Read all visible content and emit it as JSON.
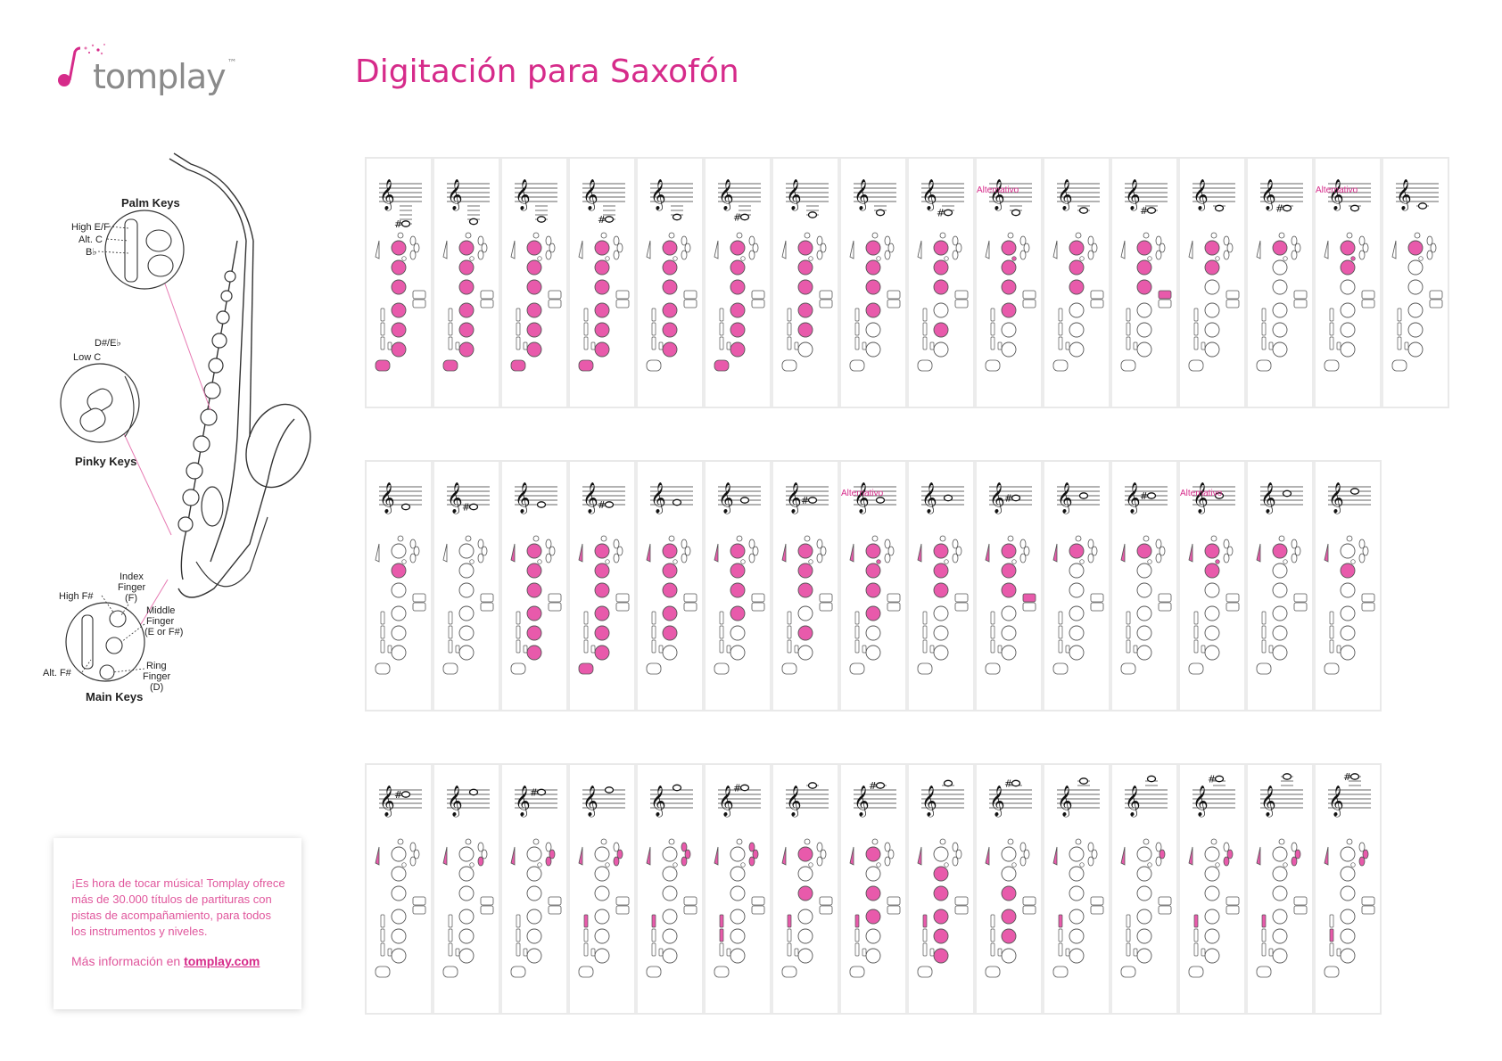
{
  "brand": {
    "name": "tomplay",
    "tm": "™",
    "accent": "#d62b8a"
  },
  "title": "Digitación para Saxofón",
  "diagram_labels": {
    "palm_keys": "Palm Keys",
    "high_ef": "High E/F",
    "alt_c": "Alt. C",
    "bb": "B♭",
    "d_sharp": "D#/E♭",
    "low_c": "Low C",
    "pinky_keys": "Pinky Keys",
    "high_fs": "High F#",
    "index_finger_1": "Index",
    "index_finger_2": "Finger",
    "index_finger_3": "(F)",
    "middle_finger_1": "Middle",
    "middle_finger_2": "Finger",
    "middle_finger_3": "(E or F#)",
    "ring_finger_1": "Ring",
    "ring_finger_2": "Finger",
    "ring_finger_3": "(D)",
    "alt_fs": "Alt. F#",
    "main_keys": "Main Keys"
  },
  "alternative_label": "Alternativo",
  "rows": [
    [
      {
        "pos": -6,
        "acc": "#",
        "pal": [
          0,
          0,
          0
        ],
        "main": [
          1,
          1,
          1,
          1,
          1,
          1
        ],
        "side": 0,
        "bis": 0,
        "lower": [
          0,
          0,
          0
        ],
        "rbot": 1,
        "lbot": 1
      },
      {
        "pos": -5,
        "acc": "",
        "pal": [
          0,
          0,
          0
        ],
        "main": [
          1,
          1,
          1,
          1,
          1,
          1
        ],
        "side": 0,
        "bis": 0,
        "lower": [
          0,
          0,
          0
        ],
        "rbot": 1,
        "lbot": 0
      },
      {
        "pos": -4,
        "acc": "",
        "pal": [
          0,
          0,
          0
        ],
        "main": [
          1,
          1,
          1,
          1,
          1,
          1
        ],
        "side": 0,
        "bis": 0,
        "lower": [
          0,
          0,
          0
        ],
        "rbot": 1,
        "lbot": 0
      },
      {
        "pos": -4,
        "acc": "#",
        "pal": [
          0,
          0,
          0
        ],
        "main": [
          1,
          1,
          1,
          1,
          1,
          1
        ],
        "side": 0,
        "bis": 0,
        "lower": [
          0,
          0,
          0
        ],
        "rbot": 1,
        "lbot": 0
      },
      {
        "pos": -3,
        "acc": "",
        "pal": [
          0,
          0,
          0
        ],
        "main": [
          1,
          1,
          1,
          1,
          1,
          1
        ],
        "side": 0,
        "bis": 0,
        "lower": [
          0,
          0,
          0
        ],
        "rbot": 0,
        "lbot": 0
      },
      {
        "pos": -3,
        "acc": "#",
        "pal": [
          0,
          0,
          0
        ],
        "main": [
          1,
          1,
          1,
          1,
          1,
          1
        ],
        "side": 0,
        "bis": 0,
        "lower": [
          0,
          0,
          0
        ],
        "rbot": 0,
        "lbot": 1
      },
      {
        "pos": -2,
        "acc": "",
        "pal": [
          0,
          0,
          0
        ],
        "main": [
          1,
          1,
          1,
          1,
          1,
          0
        ],
        "side": 0,
        "bis": 0,
        "lower": [
          0,
          0,
          0
        ],
        "rbot": 0,
        "lbot": 0
      },
      {
        "pos": -1,
        "acc": "",
        "pal": [
          0,
          0,
          0
        ],
        "main": [
          1,
          1,
          1,
          1,
          0,
          0
        ],
        "side": 0,
        "bis": 0,
        "lower": [
          0,
          0,
          0
        ],
        "rbot": 0,
        "lbot": 0
      },
      {
        "pos": -1,
        "acc": "#",
        "pal": [
          0,
          0,
          0
        ],
        "main": [
          1,
          1,
          1,
          0,
          1,
          0
        ],
        "side": 0,
        "bis": 0,
        "lower": [
          0,
          0,
          0
        ],
        "rbot": 0,
        "lbot": 0
      },
      {
        "pos": -1,
        "acc": "",
        "alt": true,
        "pal": [
          0,
          0,
          0
        ],
        "main": [
          1,
          1,
          1,
          1,
          0,
          0
        ],
        "side": 0,
        "bis": 1,
        "lower": [
          0,
          0,
          0
        ],
        "rbot": 0,
        "lbot": 0
      },
      {
        "pos": 0,
        "acc": "",
        "pal": [
          0,
          0,
          0
        ],
        "main": [
          1,
          1,
          1,
          0,
          0,
          0
        ],
        "side": 0,
        "bis": 0,
        "lower": [
          0,
          0,
          0
        ],
        "rbot": 0,
        "lbot": 0
      },
      {
        "pos": 0,
        "acc": "#",
        "pal": [
          0,
          0,
          0
        ],
        "main": [
          1,
          1,
          1,
          0,
          0,
          0
        ],
        "side": 1,
        "bis": 0,
        "lower": [
          0,
          0,
          0
        ],
        "rbot": 0,
        "lbot": 0
      },
      {
        "pos": 1,
        "acc": "",
        "pal": [
          0,
          0,
          0
        ],
        "main": [
          1,
          1,
          0,
          0,
          0,
          0
        ],
        "side": 0,
        "bis": 0,
        "lower": [
          0,
          0,
          0
        ],
        "rbot": 0,
        "lbot": 0
      },
      {
        "pos": 1,
        "acc": "#",
        "pal": [
          0,
          0,
          0
        ],
        "main": [
          1,
          0,
          0,
          0,
          0,
          0
        ],
        "side": 0,
        "bis": 0,
        "lower": [
          0,
          0,
          0
        ],
        "rbot": 0,
        "lbot": 0
      },
      {
        "pos": 1,
        "acc": "",
        "alt": true,
        "pal": [
          0,
          0,
          0
        ],
        "main": [
          1,
          1,
          0,
          0,
          0,
          0
        ],
        "side": 0,
        "bis": 1,
        "lower": [
          0,
          0,
          0
        ],
        "rbot": 0,
        "lbot": 0
      },
      {
        "pos": 2,
        "acc": "",
        "pal": [
          0,
          0,
          0
        ],
        "main": [
          1,
          0,
          0,
          0,
          0,
          0
        ],
        "side": 0,
        "bis": 0,
        "lower": [
          0,
          0,
          0
        ],
        "rbot": 0,
        "lbot": 0
      }
    ],
    [
      {
        "pos": 3,
        "acc": "",
        "pal": [
          0,
          0,
          0
        ],
        "main": [
          0,
          1,
          0,
          0,
          0,
          0
        ],
        "side": 0,
        "bis": 0,
        "lower": [
          0,
          0,
          0
        ],
        "rbot": 0,
        "lbot": 0,
        "oct": 0
      },
      {
        "pos": 3,
        "acc": "#",
        "pal": [
          0,
          0,
          0
        ],
        "main": [
          0,
          0,
          0,
          0,
          0,
          0
        ],
        "side": 0,
        "bis": 0,
        "lower": [
          0,
          0,
          0
        ],
        "rbot": 0,
        "lbot": 0,
        "oct": 0
      },
      {
        "pos": 4,
        "acc": "",
        "pal": [
          0,
          0,
          0
        ],
        "main": [
          1,
          1,
          1,
          1,
          1,
          1
        ],
        "side": 0,
        "bis": 0,
        "lower": [
          0,
          0,
          0
        ],
        "rbot": 0,
        "lbot": 0,
        "oct": 1
      },
      {
        "pos": 4,
        "acc": "#",
        "pal": [
          0,
          0,
          0
        ],
        "main": [
          1,
          1,
          1,
          1,
          1,
          1
        ],
        "side": 0,
        "bis": 0,
        "lower": [
          0,
          0,
          0
        ],
        "rbot": 0,
        "lbot": 1,
        "oct": 1
      },
      {
        "pos": 5,
        "acc": "",
        "pal": [
          0,
          0,
          0
        ],
        "main": [
          1,
          1,
          1,
          1,
          1,
          0
        ],
        "side": 0,
        "bis": 0,
        "lower": [
          0,
          0,
          0
        ],
        "rbot": 0,
        "lbot": 0,
        "oct": 1
      },
      {
        "pos": 6,
        "acc": "",
        "pal": [
          0,
          0,
          0
        ],
        "main": [
          1,
          1,
          1,
          1,
          0,
          0
        ],
        "side": 0,
        "bis": 0,
        "lower": [
          0,
          0,
          0
        ],
        "rbot": 0,
        "lbot": 0,
        "oct": 1
      },
      {
        "pos": 6,
        "acc": "#",
        "pal": [
          0,
          0,
          0
        ],
        "main": [
          1,
          1,
          1,
          0,
          1,
          0
        ],
        "side": 0,
        "bis": 0,
        "lower": [
          0,
          0,
          0
        ],
        "rbot": 0,
        "lbot": 0,
        "oct": 1
      },
      {
        "pos": 6,
        "acc": "",
        "alt": true,
        "pal": [
          0,
          0,
          0
        ],
        "main": [
          1,
          1,
          1,
          1,
          0,
          0
        ],
        "side": 0,
        "bis": 1,
        "lower": [
          0,
          0,
          0
        ],
        "rbot": 0,
        "lbot": 0,
        "oct": 1
      },
      {
        "pos": 7,
        "acc": "",
        "pal": [
          0,
          0,
          0
        ],
        "main": [
          1,
          1,
          1,
          0,
          0,
          0
        ],
        "side": 0,
        "bis": 0,
        "lower": [
          0,
          0,
          0
        ],
        "rbot": 0,
        "lbot": 0,
        "oct": 1
      },
      {
        "pos": 7,
        "acc": "#",
        "pal": [
          0,
          0,
          0
        ],
        "main": [
          1,
          1,
          1,
          0,
          0,
          0
        ],
        "side": 1,
        "bis": 0,
        "lower": [
          0,
          0,
          0
        ],
        "rbot": 0,
        "lbot": 0,
        "oct": 1
      },
      {
        "pos": 8,
        "acc": "",
        "pal": [
          0,
          0,
          0
        ],
        "main": [
          1,
          0,
          0,
          0,
          0,
          0
        ],
        "side": 0,
        "bis": 0,
        "lower": [
          0,
          0,
          0
        ],
        "rbot": 0,
        "lbot": 0,
        "oct": 1
      },
      {
        "pos": 8,
        "acc": "#",
        "pal": [
          0,
          0,
          0
        ],
        "main": [
          1,
          0,
          0,
          0,
          0,
          0
        ],
        "side": 0,
        "bis": 0,
        "lower": [
          0,
          0,
          0
        ],
        "rbot": 0,
        "lbot": 0,
        "oct": 1
      },
      {
        "pos": 8,
        "acc": "",
        "alt": true,
        "pal": [
          0,
          0,
          0
        ],
        "main": [
          1,
          1,
          0,
          0,
          0,
          0
        ],
        "side": 0,
        "bis": 1,
        "lower": [
          0,
          0,
          0
        ],
        "rbot": 0,
        "lbot": 0,
        "oct": 1
      },
      {
        "pos": 9,
        "acc": "",
        "pal": [
          0,
          0,
          0
        ],
        "main": [
          1,
          0,
          0,
          0,
          0,
          0
        ],
        "side": 0,
        "bis": 0,
        "lower": [
          0,
          0,
          0
        ],
        "rbot": 0,
        "lbot": 0,
        "oct": 1
      },
      {
        "pos": 10,
        "acc": "",
        "pal": [
          0,
          0,
          0
        ],
        "main": [
          0,
          1,
          0,
          0,
          0,
          0
        ],
        "side": 0,
        "bis": 0,
        "lower": [
          0,
          0,
          0
        ],
        "rbot": 0,
        "lbot": 0,
        "oct": 1
      }
    ],
    [
      {
        "pos": 10,
        "acc": "#",
        "pal": [
          0,
          0,
          0
        ],
        "main": [
          0,
          0,
          0,
          0,
          0,
          0
        ],
        "side": 0,
        "bis": 0,
        "lower": [
          0,
          0,
          0
        ],
        "rbot": 0,
        "lbot": 0,
        "oct": 1
      },
      {
        "pos": 11,
        "acc": "",
        "pal": [
          0,
          0,
          1
        ],
        "main": [
          0,
          0,
          0,
          0,
          0,
          0
        ],
        "side": 0,
        "bis": 0,
        "lower": [
          0,
          0,
          0
        ],
        "rbot": 0,
        "lbot": 0,
        "oct": 1
      },
      {
        "pos": 11,
        "acc": "#",
        "pal": [
          0,
          1,
          1
        ],
        "main": [
          0,
          0,
          0,
          0,
          0,
          0
        ],
        "side": 0,
        "bis": 0,
        "lower": [
          0,
          0,
          0
        ],
        "rbot": 0,
        "lbot": 0,
        "oct": 1
      },
      {
        "pos": 12,
        "acc": "",
        "pal": [
          0,
          1,
          1
        ],
        "main": [
          0,
          0,
          0,
          0,
          0,
          0
        ],
        "side": 0,
        "bis": 0,
        "lower": [
          1,
          0,
          0
        ],
        "rbot": 0,
        "lbot": 0,
        "oct": 1
      },
      {
        "pos": 13,
        "acc": "",
        "pal": [
          1,
          1,
          1
        ],
        "main": [
          0,
          0,
          0,
          0,
          0,
          0
        ],
        "side": 0,
        "bis": 0,
        "lower": [
          1,
          0,
          0
        ],
        "rbot": 0,
        "lbot": 0,
        "oct": 1
      },
      {
        "pos": 13,
        "acc": "#",
        "pal": [
          1,
          1,
          1
        ],
        "main": [
          0,
          0,
          0,
          0,
          0,
          0
        ],
        "side": 0,
        "bis": 0,
        "lower": [
          1,
          1,
          0
        ],
        "rbot": 0,
        "lbot": 0,
        "oct": 1
      },
      {
        "pos": 14,
        "acc": "",
        "pal": [
          0,
          0,
          0
        ],
        "main": [
          1,
          0,
          1,
          0,
          0,
          0
        ],
        "side": 0,
        "bis": 0,
        "lower": [
          1,
          0,
          0
        ],
        "rbot": 0,
        "lbot": 0,
        "oct": 1
      },
      {
        "pos": 14,
        "acc": "#",
        "pal": [
          0,
          0,
          0
        ],
        "main": [
          1,
          0,
          1,
          1,
          0,
          0
        ],
        "side": 0,
        "bis": 0,
        "lower": [
          1,
          0,
          0
        ],
        "rbot": 0,
        "lbot": 0,
        "oct": 1
      },
      {
        "pos": 15,
        "acc": "",
        "pal": [
          0,
          0,
          0
        ],
        "main": [
          0,
          1,
          1,
          1,
          1,
          1
        ],
        "side": 0,
        "bis": 0,
        "lower": [
          1,
          0,
          0
        ],
        "rbot": 0,
        "lbot": 0,
        "oct": 1
      },
      {
        "pos": 15,
        "acc": "#",
        "pal": [
          0,
          0,
          0
        ],
        "main": [
          0,
          0,
          1,
          1,
          1,
          0
        ],
        "side": 0,
        "bis": 0,
        "lower": [
          0,
          0,
          0
        ],
        "rbot": 0,
        "lbot": 0,
        "oct": 1
      },
      {
        "pos": 16,
        "acc": "",
        "pal": [
          0,
          0,
          0
        ],
        "main": [
          0,
          0,
          0,
          0,
          0,
          0
        ],
        "side": 0,
        "bis": 0,
        "lower": [
          1,
          0,
          0
        ],
        "rbot": 0,
        "lbot": 0,
        "oct": 1
      },
      {
        "pos": 17,
        "acc": "",
        "pal": [
          0,
          1,
          0
        ],
        "main": [
          0,
          0,
          0,
          0,
          0,
          0
        ],
        "side": 0,
        "bis": 0,
        "lower": [
          0,
          0,
          0
        ],
        "rbot": 0,
        "lbot": 0,
        "oct": 1
      },
      {
        "pos": 17,
        "acc": "#",
        "pal": [
          0,
          1,
          1
        ],
        "main": [
          0,
          0,
          0,
          0,
          0,
          0
        ],
        "side": 0,
        "bis": 0,
        "lower": [
          1,
          0,
          0
        ],
        "rbot": 0,
        "lbot": 0,
        "oct": 1
      },
      {
        "pos": 18,
        "acc": "",
        "pal": [
          0,
          1,
          1
        ],
        "main": [
          0,
          0,
          0,
          0,
          0,
          0
        ],
        "side": 0,
        "bis": 0,
        "lower": [
          1,
          0,
          0
        ],
        "rbot": 0,
        "lbot": 0,
        "oct": 1
      },
      {
        "pos": 18,
        "acc": "#",
        "pal": [
          0,
          1,
          1
        ],
        "main": [
          0,
          0,
          0,
          0,
          0,
          0
        ],
        "side": 0,
        "bis": 0,
        "lower": [
          0,
          1,
          0
        ],
        "rbot": 0,
        "lbot": 0,
        "oct": 1
      }
    ]
  ],
  "promo": {
    "text": "¡Es hora de tocar música! Tomplay ofrece más de 30.000 títulos de partituras con pistas de acompañamiento, para todos los instrumentos y niveles.",
    "more_prefix": "Más información en ",
    "link": "tomplay.com"
  }
}
